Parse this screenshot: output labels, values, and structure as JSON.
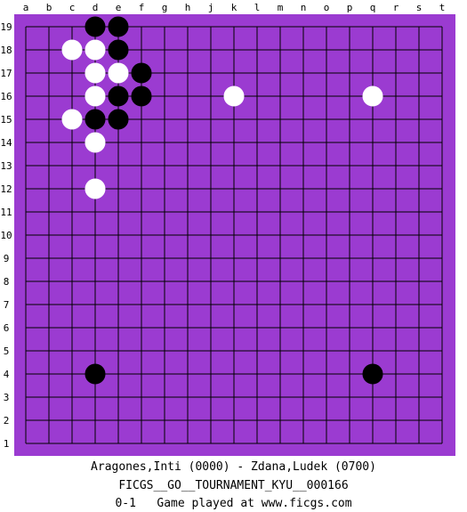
{
  "board": {
    "size": 19,
    "background_color": "#9b3bd1",
    "line_color": "#000000",
    "col_labels": [
      "a",
      "b",
      "c",
      "d",
      "e",
      "f",
      "g",
      "h",
      "j",
      "k",
      "l",
      "m",
      "n",
      "o",
      "p",
      "q",
      "r",
      "s",
      "t"
    ],
    "row_labels": [
      "19",
      "18",
      "17",
      "16",
      "15",
      "14",
      "13",
      "12",
      "11",
      "10",
      "9",
      "8",
      "7",
      "6",
      "5",
      "4",
      "3",
      "2",
      "1"
    ],
    "stones": [
      {
        "color": "black",
        "col": "d",
        "row": 19
      },
      {
        "color": "black",
        "col": "e",
        "row": 19
      },
      {
        "color": "white",
        "col": "c",
        "row": 18
      },
      {
        "color": "white",
        "col": "d",
        "row": 18
      },
      {
        "color": "black",
        "col": "e",
        "row": 18
      },
      {
        "color": "white",
        "col": "d",
        "row": 17
      },
      {
        "color": "white",
        "col": "e",
        "row": 17
      },
      {
        "color": "black",
        "col": "f",
        "row": 17
      },
      {
        "color": "white",
        "col": "d",
        "row": 16
      },
      {
        "color": "black",
        "col": "e",
        "row": 16
      },
      {
        "color": "black",
        "col": "f",
        "row": 16
      },
      {
        "color": "white",
        "col": "k",
        "row": 16
      },
      {
        "color": "white",
        "col": "q",
        "row": 16
      },
      {
        "color": "white",
        "col": "c",
        "row": 15
      },
      {
        "color": "black",
        "col": "d",
        "row": 15
      },
      {
        "color": "black",
        "col": "e",
        "row": 15
      },
      {
        "color": "white",
        "col": "d",
        "row": 14
      },
      {
        "color": "white",
        "col": "d",
        "row": 12
      },
      {
        "color": "black",
        "col": "d",
        "row": 4
      },
      {
        "color": "black",
        "col": "q",
        "row": 4
      }
    ]
  },
  "captions": {
    "players": "Aragones,Inti (0000) - Zdana,Ludek (0700)",
    "tournament": "FICGS__GO__TOURNAMENT_KYU__000166",
    "result": "0-1   Game played at www.ficgs.com"
  }
}
